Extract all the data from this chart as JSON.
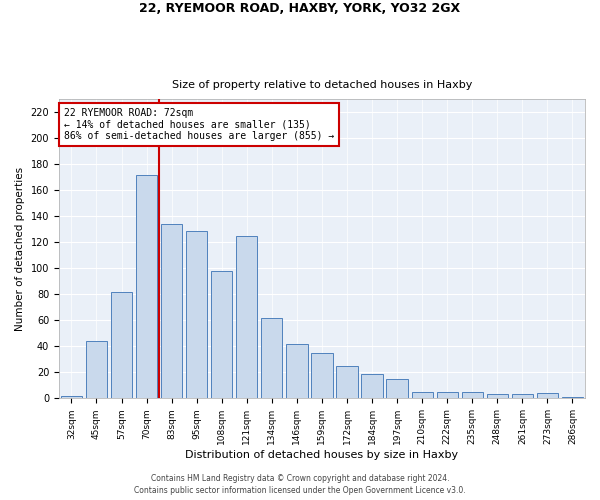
{
  "title_line1": "22, RYEMOOR ROAD, HAXBY, YORK, YO32 2GX",
  "title_line2": "Size of property relative to detached houses in Haxby",
  "xlabel": "Distribution of detached houses by size in Haxby",
  "ylabel": "Number of detached properties",
  "footer_line1": "Contains HM Land Registry data © Crown copyright and database right 2024.",
  "footer_line2": "Contains public sector information licensed under the Open Government Licence v3.0.",
  "categories": [
    "32sqm",
    "45sqm",
    "57sqm",
    "70sqm",
    "83sqm",
    "95sqm",
    "108sqm",
    "121sqm",
    "134sqm",
    "146sqm",
    "159sqm",
    "172sqm",
    "184sqm",
    "197sqm",
    "210sqm",
    "222sqm",
    "235sqm",
    "248sqm",
    "261sqm",
    "273sqm",
    "286sqm"
  ],
  "values": [
    2,
    44,
    82,
    172,
    134,
    129,
    98,
    125,
    62,
    42,
    35,
    25,
    19,
    15,
    5,
    5,
    5,
    3,
    3,
    4,
    1
  ],
  "bar_color": "#c9d9ec",
  "bar_edge_color": "#4f81bd",
  "background_color": "#eaf0f8",
  "grid_color": "#ffffff",
  "property_line_x": 3.5,
  "annotation_text": "22 RYEMOOR ROAD: 72sqm\n← 14% of detached houses are smaller (135)\n86% of semi-detached houses are larger (855) →",
  "annotation_box_color": "#ffffff",
  "annotation_box_edge_color": "#cc0000",
  "vline_color": "#cc0000",
  "ylim": [
    0,
    230
  ],
  "yticks": [
    0,
    20,
    40,
    60,
    80,
    100,
    120,
    140,
    160,
    180,
    200,
    220
  ]
}
